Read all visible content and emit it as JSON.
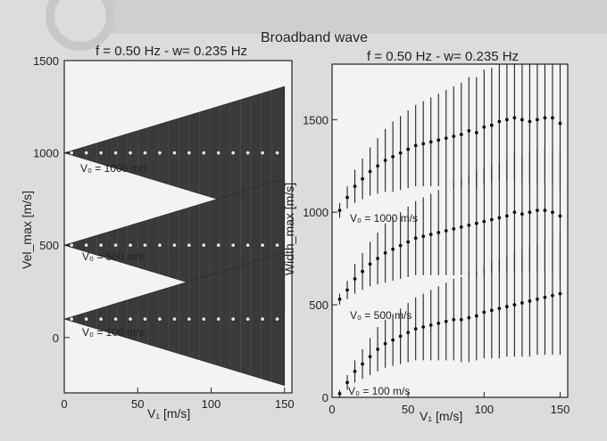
{
  "figure": {
    "title": "Broadband wave"
  },
  "chart_data": [
    {
      "type": "scatter",
      "subtitle": "f = 0.50 Hz - w= 0.235 Hz",
      "xlabel": "V₁ [m/s]",
      "ylabel": "Vel_max [m/s]",
      "xlim": [
        0,
        155
      ],
      "ylim": [
        -300,
        1500
      ],
      "xticks": [
        "0",
        "50",
        "100",
        "150"
      ],
      "yticks": [
        "0",
        "500",
        "1000",
        "1500"
      ],
      "series": [
        {
          "name": "V₀ = 1000 m/s",
          "v0": 1000,
          "x": [
            5,
            15,
            25,
            35,
            45,
            55,
            65,
            75,
            85,
            95,
            105,
            115,
            125,
            135,
            145
          ],
          "y": [
            1000,
            1000,
            1000,
            1000,
            1000,
            1000,
            1000,
            1000,
            1000,
            1000,
            1000,
            1000,
            1000,
            1000,
            1000
          ]
        },
        {
          "name": "V₀ = 500 m/s",
          "v0": 500,
          "x": [
            5,
            15,
            25,
            35,
            45,
            55,
            65,
            75,
            85,
            95,
            105,
            115,
            125,
            135,
            145
          ],
          "y": [
            500,
            500,
            500,
            500,
            500,
            500,
            500,
            500,
            500,
            500,
            500,
            500,
            500,
            500,
            500
          ]
        },
        {
          "name": "V₀ = 100 m/s",
          "v0": 100,
          "x": [
            5,
            15,
            25,
            35,
            45,
            55,
            65,
            75,
            85,
            95,
            105,
            115,
            125,
            135,
            145
          ],
          "y": [
            100,
            100,
            100,
            100,
            100,
            100,
            100,
            100,
            100,
            100,
            100,
            100,
            100,
            100,
            100
          ]
        }
      ],
      "labels": [
        "V₀ = 1000 m/s",
        "V₀ = 500 m/s",
        "V₀ = 100 m/s"
      ]
    },
    {
      "type": "scatter",
      "subtitle": "f = 0.50 Hz - w= 0.235 Hz",
      "xlabel": "V₁ [m/s]",
      "ylabel": "Width_max [m/s]",
      "xlim": [
        0,
        155
      ],
      "ylim": [
        0,
        1800
      ],
      "xticks": [
        "0",
        "50",
        "100",
        "150"
      ],
      "yticks": [
        "0",
        "500",
        "1000",
        "1500"
      ],
      "series": [
        {
          "name": "V₀ = 1000 m/s",
          "x": [
            5,
            10,
            15,
            20,
            25,
            30,
            35,
            40,
            45,
            50,
            55,
            60,
            65,
            70,
            75,
            80,
            85,
            90,
            95,
            100,
            105,
            110,
            115,
            120,
            125,
            130,
            135,
            140,
            145,
            150
          ],
          "y": [
            1010,
            1080,
            1140,
            1180,
            1220,
            1250,
            1280,
            1300,
            1320,
            1340,
            1360,
            1370,
            1380,
            1390,
            1400,
            1410,
            1420,
            1440,
            1430,
            1460,
            1470,
            1490,
            1500,
            1510,
            1500,
            1490,
            1500,
            1510,
            1510,
            1480
          ],
          "err": [
            40,
            60,
            90,
            110,
            130,
            150,
            170,
            190,
            200,
            210,
            220,
            230,
            240,
            250,
            260,
            270,
            280,
            290,
            300,
            310,
            310,
            320,
            330,
            330,
            340,
            340,
            350,
            350,
            360,
            360
          ]
        },
        {
          "name": "V₀ = 500 m/s",
          "x": [
            5,
            10,
            15,
            20,
            25,
            30,
            35,
            40,
            45,
            50,
            55,
            60,
            65,
            70,
            75,
            80,
            85,
            90,
            95,
            100,
            105,
            110,
            115,
            120,
            125,
            130,
            135,
            140,
            145,
            150
          ],
          "y": [
            530,
            580,
            640,
            680,
            720,
            750,
            780,
            800,
            820,
            840,
            860,
            870,
            880,
            890,
            900,
            910,
            920,
            930,
            940,
            950,
            960,
            970,
            980,
            1000,
            990,
            1000,
            1010,
            1010,
            1000,
            980
          ],
          "err": [
            30,
            50,
            80,
            100,
            120,
            140,
            160,
            170,
            180,
            190,
            200,
            210,
            220,
            230,
            240,
            250,
            260,
            270,
            280,
            290,
            290,
            300,
            310,
            320,
            320,
            330,
            330,
            340,
            340,
            350
          ]
        },
        {
          "name": "V₀ = 100 m/s",
          "x": [
            5,
            10,
            15,
            20,
            25,
            30,
            35,
            40,
            45,
            50,
            55,
            60,
            65,
            70,
            75,
            80,
            85,
            90,
            95,
            100,
            105,
            110,
            115,
            120,
            125,
            130,
            135,
            140,
            145,
            150
          ],
          "y": [
            20,
            80,
            140,
            180,
            220,
            260,
            290,
            310,
            330,
            350,
            370,
            380,
            390,
            400,
            410,
            420,
            420,
            430,
            440,
            460,
            470,
            480,
            490,
            500,
            510,
            520,
            530,
            540,
            550,
            560
          ],
          "err": [
            20,
            40,
            60,
            80,
            100,
            120,
            130,
            140,
            150,
            160,
            170,
            180,
            190,
            200,
            210,
            220,
            230,
            240,
            240,
            250,
            260,
            270,
            270,
            280,
            290,
            300,
            300,
            310,
            320,
            330
          ]
        }
      ],
      "labels": [
        "V₀ = 1000 m/s",
        "V₀ = 500 m/s",
        "V₀ = 100 m/s"
      ]
    }
  ]
}
